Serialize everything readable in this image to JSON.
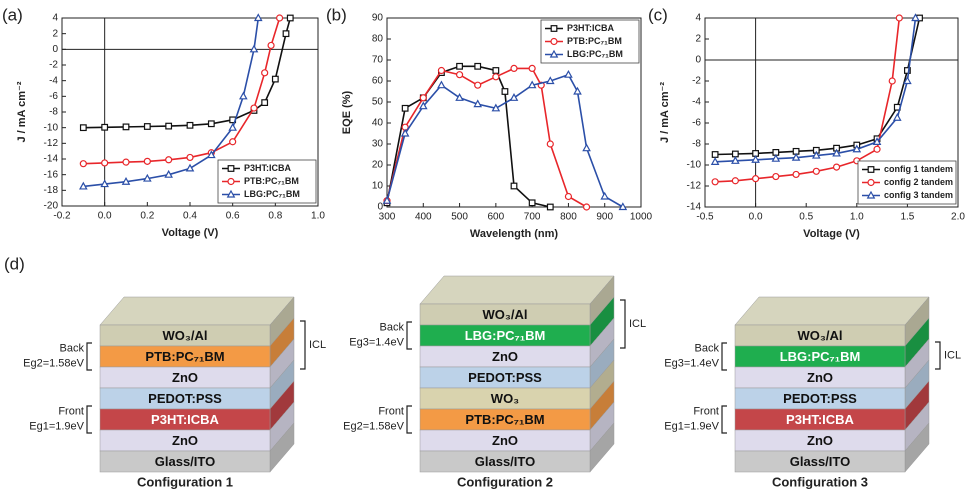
{
  "chart_data": [
    {
      "panel": "(a)",
      "type": "line",
      "x_label": "Voltage (V)",
      "y_label": "J / mA cm⁻²",
      "xlim": [
        -0.2,
        1.0
      ],
      "xticks": [
        -0.2,
        {
          "value": 0,
          "label": "0.0"
        },
        0.2,
        0.4,
        0.6,
        0.8,
        {
          "value": 1,
          "label": "1.0"
        }
      ],
      "ylim": [
        -20,
        4
      ],
      "yticks": [
        -20,
        -18,
        -16,
        -14,
        -12,
        -10,
        -8,
        -6,
        -4,
        -2,
        0,
        2,
        4
      ],
      "legend": "lower right",
      "zero_lines": true,
      "series": [
        {
          "name": "P3HT:ICBA",
          "color": "#111111",
          "marker": "square",
          "x": [
            -0.1,
            0,
            0.1,
            0.2,
            0.3,
            0.4,
            0.5,
            0.6,
            0.7,
            0.75,
            0.8,
            0.85,
            0.87
          ],
          "values": [
            -10,
            -9.95,
            -9.9,
            -9.85,
            -9.8,
            -9.7,
            -9.5,
            -9.0,
            -7.8,
            -6.8,
            -3.8,
            2,
            4
          ]
        },
        {
          "name": "PTB:PC₇₁BM",
          "color": "#e8262a",
          "marker": "circle",
          "x": [
            -0.1,
            0,
            0.1,
            0.2,
            0.3,
            0.4,
            0.5,
            0.6,
            0.7,
            0.75,
            0.78,
            0.82
          ],
          "values": [
            -14.6,
            -14.5,
            -14.4,
            -14.3,
            -14.1,
            -13.8,
            -13.2,
            -11.8,
            -7.5,
            -3,
            0.5,
            4
          ]
        },
        {
          "name": "LBG:PC₇₁BM",
          "color": "#2b4fa8",
          "marker": "triangle",
          "x": [
            -0.1,
            0,
            0.1,
            0.2,
            0.3,
            0.4,
            0.5,
            0.6,
            0.65,
            0.7,
            0.72
          ],
          "values": [
            -17.5,
            -17.2,
            -16.9,
            -16.5,
            -16,
            -15.2,
            -13.5,
            -10,
            -6,
            0,
            4
          ]
        }
      ]
    },
    {
      "panel": "(b)",
      "type": "line",
      "x_label": "Wavelength (nm)",
      "y_label": "EQE (%)",
      "xlim": [
        300,
        1000
      ],
      "xticks": [
        300,
        400,
        500,
        600,
        700,
        800,
        900,
        1000
      ],
      "ylim": [
        0,
        90
      ],
      "yticks": [
        0,
        10,
        20,
        30,
        40,
        50,
        60,
        70,
        80,
        90
      ],
      "legend": "upper right",
      "zero_lines": false,
      "series": [
        {
          "name": "P3HT:ICBA",
          "color": "#111111",
          "marker": "square",
          "x": [
            300,
            350,
            400,
            450,
            500,
            550,
            600,
            625,
            650,
            700,
            750
          ],
          "values": [
            2,
            47,
            52,
            64,
            67,
            67,
            65,
            55,
            10,
            2,
            0
          ]
        },
        {
          "name": "PTB:PC₇₁BM",
          "color": "#e8262a",
          "marker": "circle",
          "x": [
            300,
            350,
            400,
            450,
            500,
            550,
            600,
            650,
            700,
            725,
            750,
            800,
            850
          ],
          "values": [
            3,
            38,
            52,
            65,
            63,
            58,
            62,
            66,
            66,
            58,
            30,
            5,
            0
          ]
        },
        {
          "name": "LBG:PC₇₁BM",
          "color": "#2b4fa8",
          "marker": "triangle",
          "x": [
            300,
            350,
            400,
            450,
            500,
            550,
            600,
            650,
            700,
            750,
            800,
            825,
            850,
            900,
            950
          ],
          "values": [
            3,
            35,
            48,
            58,
            52,
            49,
            47,
            52,
            58,
            60,
            63,
            55,
            28,
            5,
            0
          ]
        }
      ]
    },
    {
      "panel": "(c)",
      "type": "line",
      "x_label": "Voltage (V)",
      "y_label": "J / mA cm⁻²",
      "xlim": [
        -0.5,
        2.0
      ],
      "xticks": [
        -0.5,
        {
          "value": 0,
          "label": "0.0"
        },
        0.5,
        {
          "value": 1,
          "label": "1.0"
        },
        1.5,
        {
          "value": 2,
          "label": "2.0"
        }
      ],
      "ylim": [
        -14,
        4
      ],
      "yticks": [
        -14,
        -12,
        -10,
        -8,
        -6,
        -4,
        -2,
        0,
        2,
        4
      ],
      "legend": "lower right",
      "zero_lines": true,
      "series": [
        {
          "name": "config 1 tandem",
          "color": "#111111",
          "marker": "square",
          "x": [
            -0.4,
            -0.2,
            0,
            0.2,
            0.4,
            0.6,
            0.8,
            1.0,
            1.2,
            1.4,
            1.5,
            1.62
          ],
          "values": [
            -9.0,
            -8.95,
            -8.9,
            -8.8,
            -8.7,
            -8.6,
            -8.4,
            -8.1,
            -7.5,
            -4.5,
            -1,
            4
          ]
        },
        {
          "name": "config 2 tandem",
          "color": "#e8262a",
          "marker": "circle",
          "x": [
            -0.4,
            -0.2,
            0,
            0.2,
            0.4,
            0.6,
            0.8,
            1.0,
            1.2,
            1.35,
            1.42
          ],
          "values": [
            -11.6,
            -11.5,
            -11.3,
            -11.1,
            -10.9,
            -10.6,
            -10.2,
            -9.6,
            -8.5,
            -2,
            4
          ]
        },
        {
          "name": "config 3 tandem",
          "color": "#2b4fa8",
          "marker": "triangle",
          "x": [
            -0.4,
            -0.2,
            0,
            0.2,
            0.4,
            0.6,
            0.8,
            1.0,
            1.2,
            1.4,
            1.5,
            1.58
          ],
          "values": [
            -9.7,
            -9.6,
            -9.5,
            -9.4,
            -9.3,
            -9.1,
            -8.9,
            -8.5,
            -7.8,
            -5.5,
            -2,
            4
          ]
        }
      ]
    }
  ],
  "diagram": {
    "panel": "(d)",
    "icl": "ICL",
    "configurations": [
      {
        "title": "Configuration 1",
        "back": {
          "label": "Back",
          "eg": "Eg2=1.58eV"
        },
        "front": {
          "label": "Front",
          "eg": "Eg1=1.9eV"
        },
        "layers": [
          {
            "name": "WO₃/Al",
            "color": "#cfcdb2"
          },
          {
            "name": "PTB:PC₇₁BM",
            "color": "#f39a45"
          },
          {
            "name": "ZnO",
            "color": "#dedbec"
          },
          {
            "name": "PEDOT:PSS",
            "color": "#bcd2e8"
          },
          {
            "name": "P3HT:ICBA",
            "color": "#c44649"
          },
          {
            "name": "ZnO",
            "color": "#dedbec"
          },
          {
            "name": "Glass/ITO",
            "color": "#c9c9c9"
          }
        ]
      },
      {
        "title": "Configuration 2",
        "back": {
          "label": "Back",
          "eg": "Eg3=1.4eV"
        },
        "front": {
          "label": "Front",
          "eg": "Eg2=1.58eV"
        },
        "layers": [
          {
            "name": "WO₃/Al",
            "color": "#cfcdb2"
          },
          {
            "name": "LBG:PC₇₁BM",
            "color": "#1fae4f"
          },
          {
            "name": "ZnO",
            "color": "#dedbec"
          },
          {
            "name": "PEDOT:PSS",
            "color": "#bcd2e8"
          },
          {
            "name": "WO₃",
            "color": "#d9d3ae"
          },
          {
            "name": "PTB:PC₇₁BM",
            "color": "#f39a45"
          },
          {
            "name": "ZnO",
            "color": "#dedbec"
          },
          {
            "name": "Glass/ITO",
            "color": "#c9c9c9"
          }
        ]
      },
      {
        "title": "Configuration 3",
        "back": {
          "label": "Back",
          "eg": "Eg3=1.4eV"
        },
        "front": {
          "label": "Front",
          "eg": "Eg1=1.9eV"
        },
        "layers": [
          {
            "name": "WO₃/Al",
            "color": "#cfcdb2"
          },
          {
            "name": "LBG:PC₇₁BM",
            "color": "#1fae4f"
          },
          {
            "name": "ZnO",
            "color": "#dedbec"
          },
          {
            "name": "PEDOT:PSS",
            "color": "#bcd2e8"
          },
          {
            "name": "P3HT:ICBA",
            "color": "#c44649"
          },
          {
            "name": "ZnO",
            "color": "#dedbec"
          },
          {
            "name": "Glass/ITO",
            "color": "#c9c9c9"
          }
        ]
      }
    ]
  }
}
